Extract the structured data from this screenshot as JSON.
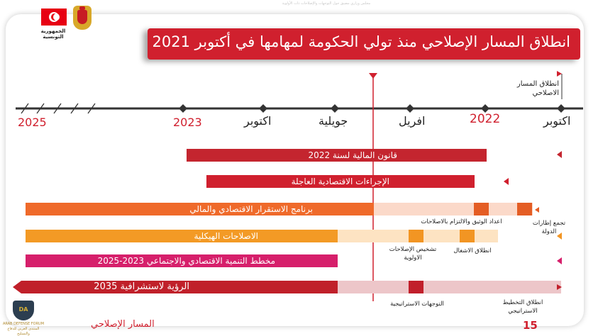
{
  "header_faint": "مجلس وزاري مضيق حول التوجهات والإصلاحات ذات الأولوية",
  "title": "انطلاق المسار الإصلاحي منذ تولي الحكومة لمهامها في أكتوبر 2021",
  "logo": {
    "republic": "الجمهورية التونسية",
    "flag_icon": "tunisia-flag-icon",
    "emblem_icon": "tunisia-emblem-icon"
  },
  "timeline": {
    "labels": [
      "2025",
      "2023",
      "اكتوبر",
      "جويلية",
      "افريل",
      "2022",
      "اكتوبر"
    ],
    "start_note_line1": "انطلاق المسار",
    "start_note_line2": "الاصلاحي"
  },
  "bars": [
    {
      "label": "قانون المالية لسنة 2022",
      "color": "#c4252f"
    },
    {
      "label": "الإجراءات الاقتصادية العاجلة",
      "color": "#d0202e"
    },
    {
      "label": "برنامج الاستقرار الاقتصادي والمالي",
      "color": "#ef6a2a",
      "light": "#fbd9c9",
      "marker": "#e45d24"
    },
    {
      "label": "الاصلاحات الهيكلية",
      "color": "#f39a25",
      "light": "#fde3c2",
      "marker": "#f29523"
    },
    {
      "label": "مخطط التنمية الاقتصادي والاجتماعي 2023-2025",
      "color": "#d61f6b"
    },
    {
      "label": "الرؤية لاستشرافية 2035",
      "color": "#c0202a",
      "light": "#edc6c9",
      "marker": "#c11f2b"
    }
  ],
  "notes": {
    "state_inst_1": "تجمع إطارات",
    "state_inst_2": "الدولة",
    "prep_doc": "اعداد الوثيق والالتزام بالاصلاحات",
    "work_start": "انطلاق الاشغال",
    "diag_1": "تشخيص الإصلاحات",
    "diag_2": "الاولوية",
    "strat_dir": "التوجهات الاستراتيجية",
    "strat_plan_1": "انطلاق التخطيط",
    "strat_plan_2": "الاستراتيجي"
  },
  "footer": {
    "section": "المسار الإصلاحي",
    "page": "15"
  },
  "watermark": {
    "name": "DA",
    "line1": "ARAB DEFENSE FORUM",
    "line2": "المنتدى العربي للدفاع والتسليح"
  }
}
